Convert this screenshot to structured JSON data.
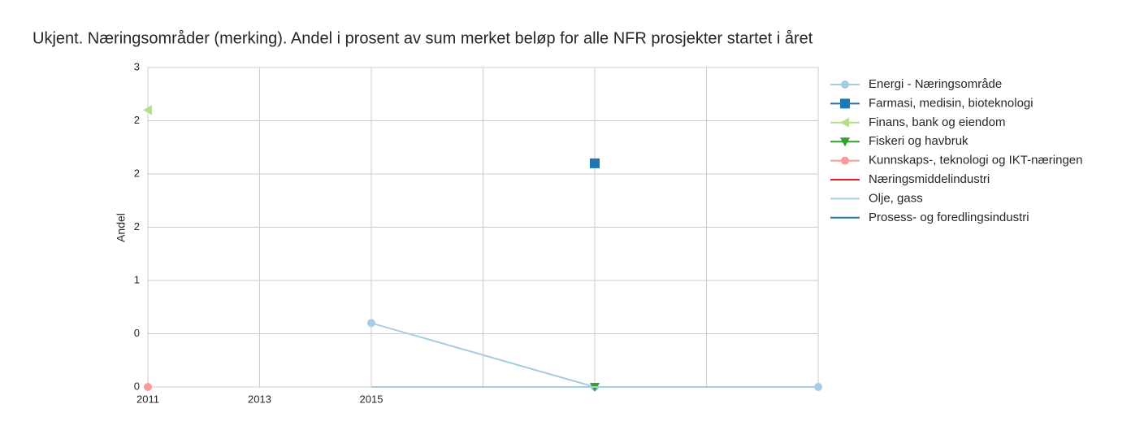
{
  "chart_data": {
    "type": "line",
    "title": "Ukjent. Næringsområder (merking). Andel i prosent av sum merket beløp for alle NFR prosjekter startet i året",
    "y_label": "Andel",
    "x": [
      2011,
      2015,
      2019,
      2023
    ],
    "xlim": [
      2011,
      2023
    ],
    "xticks": [
      2011,
      2013,
      2015,
      {
        "value": 2017,
        "label": null
      },
      {
        "value": 2019,
        "label": null
      },
      {
        "value": 2021,
        "label": null
      },
      {
        "value": 2023,
        "label": null
      }
    ],
    "ylim": [
      0,
      3
    ],
    "yticks": [
      0,
      {
        "value": 0.5,
        "label": "0"
      },
      1,
      {
        "value": 1.5,
        "label": "2"
      },
      2,
      {
        "value": 2.5,
        "label": "2"
      },
      3
    ],
    "grid": true,
    "legend": "outside-right",
    "series": [
      {
        "name": "Energi - Næringsområde",
        "color": "#a6cee3",
        "marker": "circle",
        "values": [
          null,
          0.6,
          0,
          0
        ]
      },
      {
        "name": "Farmasi, medisin, bioteknologi",
        "color": "#1f78b4",
        "marker": "square",
        "values": [
          null,
          null,
          2.1,
          null
        ]
      },
      {
        "name": "Finans, bank og eiendom",
        "color": "#b2df8a",
        "marker": "triangle-left",
        "values": [
          2.6,
          null,
          null,
          null
        ]
      },
      {
        "name": "Fiskeri og havbruk",
        "color": "#33a02c",
        "marker": "triangle-down",
        "values": [
          null,
          null,
          0,
          null
        ]
      },
      {
        "name": "Kunnskaps-, teknologi og IKT-næringen",
        "color": "#fb9a99",
        "marker": "circle",
        "values": [
          0,
          null,
          null,
          null
        ]
      },
      {
        "name": "Næringsmiddelindustri",
        "color": "#e31a1c",
        "marker": null,
        "values": [
          null,
          null,
          null,
          null
        ]
      },
      {
        "name": "Olje, gass",
        "color": "#a6cee3",
        "marker": null,
        "values": [
          null,
          0,
          0,
          0
        ]
      },
      {
        "name": "Prosess- og foredlingsindustri",
        "color": "#1f78b4",
        "marker": null,
        "values": [
          null,
          null,
          null,
          null
        ]
      }
    ]
  }
}
